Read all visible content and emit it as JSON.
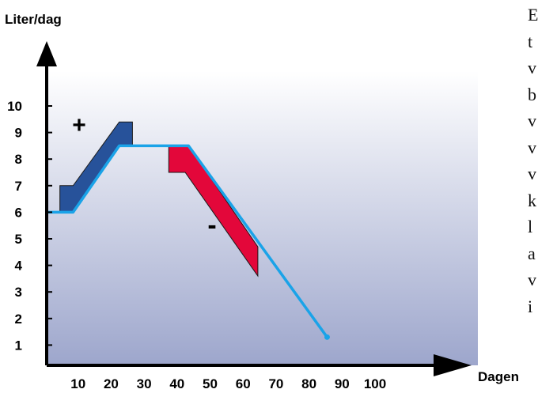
{
  "chart_data": {
    "type": "line",
    "ylabel": "Liter/dag",
    "xlabel": "Dagen",
    "x_ticks": [
      10,
      20,
      30,
      40,
      50,
      60,
      70,
      80,
      90,
      100
    ],
    "y_ticks": [
      1,
      2,
      3,
      4,
      5,
      6,
      7,
      8,
      9,
      10
    ],
    "xlim": [
      0,
      100
    ],
    "ylim": [
      0,
      11
    ],
    "series": [
      {
        "color": "#1aa3e8",
        "x": [
          0,
          8,
          22,
          43,
          85
        ],
        "y": [
          6,
          6,
          8.5,
          8.5,
          1.3
        ]
      }
    ],
    "bands": [
      {
        "label": "+",
        "color": "#27529a",
        "polygon": [
          [
            4,
            6
          ],
          [
            4,
            7
          ],
          [
            8,
            7
          ],
          [
            22,
            9.4
          ],
          [
            26,
            9.4
          ],
          [
            26,
            8.5
          ],
          [
            22,
            8.5
          ],
          [
            8,
            6
          ]
        ]
      },
      {
        "label": "-",
        "color": "#e3073a",
        "polygon": [
          [
            37,
            8.5
          ],
          [
            37,
            7.5
          ],
          [
            42,
            7.5
          ],
          [
            64,
            3.6
          ],
          [
            64,
            4.7
          ],
          [
            43,
            8.5
          ]
        ]
      }
    ]
  },
  "side_text": [
    "E",
    "t",
    "v",
    "b",
    "v",
    "v",
    "v",
    "k",
    "l",
    "a",
    "v",
    "i"
  ]
}
